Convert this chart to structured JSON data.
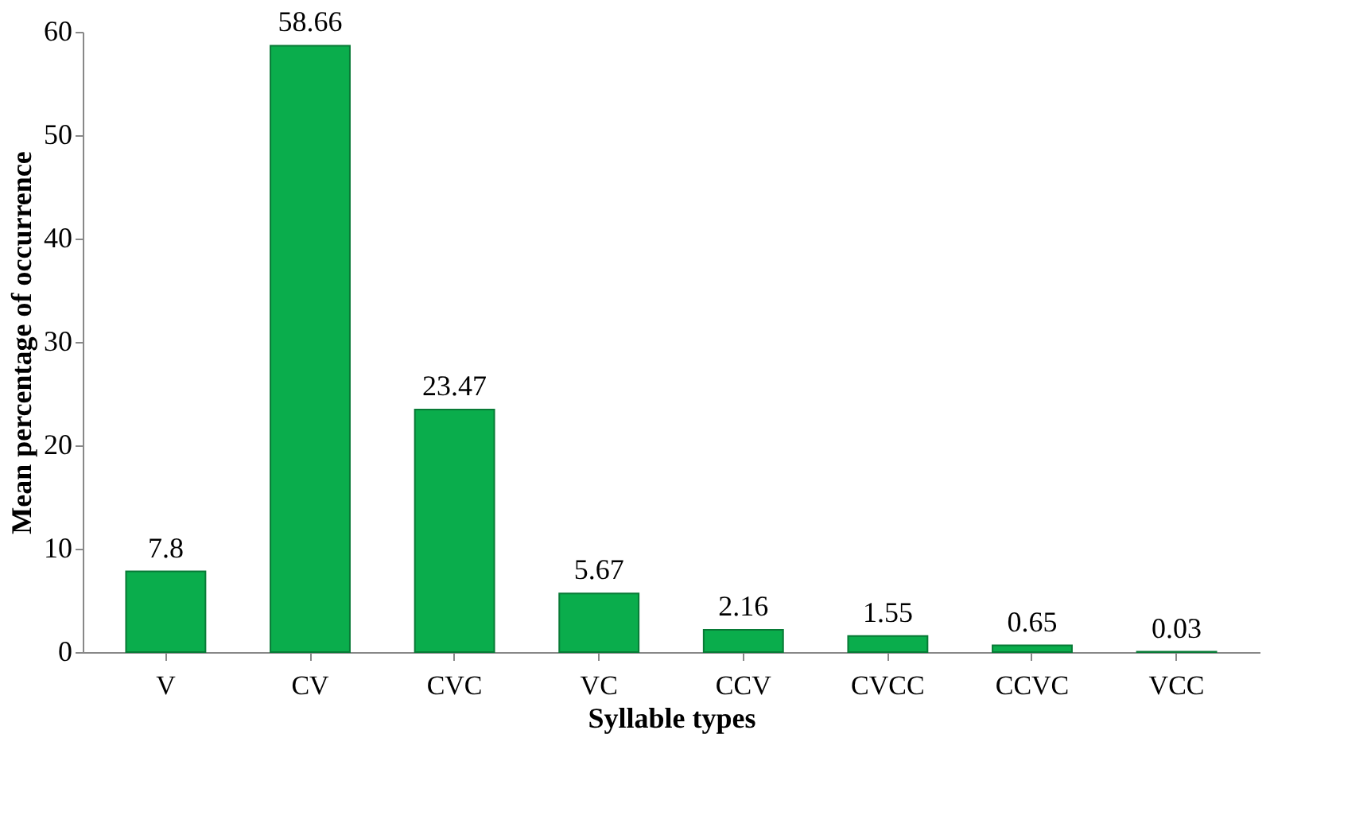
{
  "chart_data": {
    "type": "bar",
    "xlabel": "Syllable types",
    "ylabel": "Mean percentage of occurrence",
    "categories": [
      "V",
      "CV",
      "CVC",
      "VC",
      "CCV",
      "CVCC",
      "CCVC",
      "VCC"
    ],
    "values": [
      7.8,
      58.66,
      23.47,
      5.67,
      2.16,
      1.55,
      0.65,
      0.03
    ],
    "color": "#0aad4c",
    "ylim": [
      0,
      60
    ],
    "yticks": [
      0,
      10,
      20,
      30,
      40,
      50,
      60
    ],
    "grid": false,
    "data_labels": true
  }
}
